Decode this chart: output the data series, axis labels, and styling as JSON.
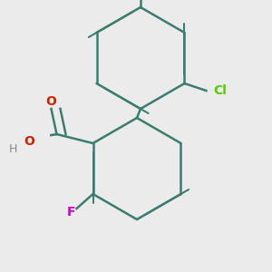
{
  "bg_color": "#ebebeb",
  "bond_color": "#3a7d6e",
  "bond_width": 1.8,
  "atom_colors": {
    "C": "#3a7d6e",
    "O": "#cc2200",
    "H": "#888888",
    "Cl": "#55cc00",
    "F": "#cc00cc",
    "CH3": "#3a7d6e"
  },
  "font_size_atom": 10,
  "font_size_label": 9
}
